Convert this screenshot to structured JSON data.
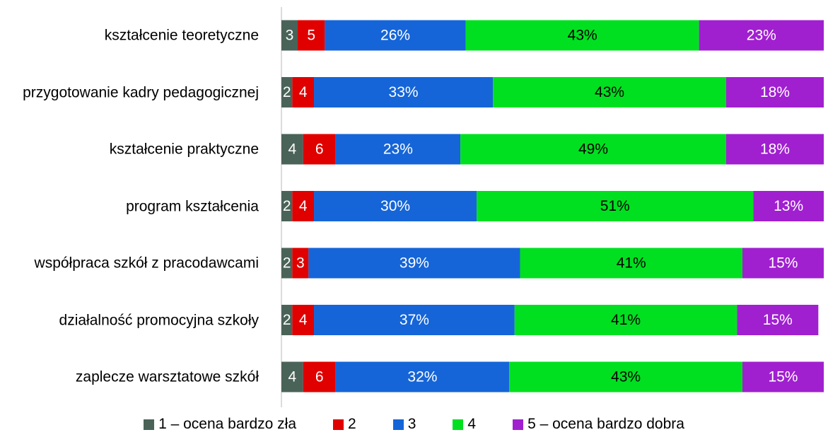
{
  "chart_data": {
    "type": "stacked-bar-horizontal",
    "categories": [
      "kształcenie teoretyczne",
      "przygotowanie kadry pedagogicznej",
      "kształcenie praktyczne",
      "program kształcenia",
      "współpraca szkół z pracodawcami",
      "działalność promocyjna szkoły",
      "zaplecze warsztatowe szkół"
    ],
    "xlim": [
      0,
      100
    ],
    "legend": "bottom",
    "series": [
      {
        "name": "1 – ocena bardzo zła",
        "color": "#4a6358",
        "label_color": "#ffffff",
        "values": [
          3,
          2,
          4,
          2,
          2,
          2,
          4
        ]
      },
      {
        "name": "2",
        "color": "#e00000",
        "label_color": "#ffffff",
        "values": [
          5,
          4,
          6,
          4,
          3,
          4,
          6
        ]
      },
      {
        "name": "3",
        "color": "#1565d8",
        "label_color": "#ffffff",
        "values": [
          26,
          33,
          23,
          30,
          39,
          37,
          32
        ],
        "value_labels": [
          "26%",
          "33%",
          "23%",
          "30%",
          "39%",
          "37%",
          "32%"
        ]
      },
      {
        "name": "4",
        "color": "#00e020",
        "label_color": "#000000",
        "values": [
          43,
          43,
          49,
          51,
          41,
          41,
          43
        ],
        "value_labels": [
          "43%",
          "43%",
          "49%",
          "51%",
          "41%",
          "41%",
          "43%"
        ]
      },
      {
        "name": "5 – ocena bardzo dobra",
        "color": "#a020d0",
        "label_color": "#ffffff",
        "values": [
          23,
          18,
          18,
          13,
          15,
          15,
          15
        ],
        "value_labels": [
          "23%",
          "18%",
          "18%",
          "13%",
          "15%",
          "15%",
          "15%"
        ]
      }
    ]
  }
}
